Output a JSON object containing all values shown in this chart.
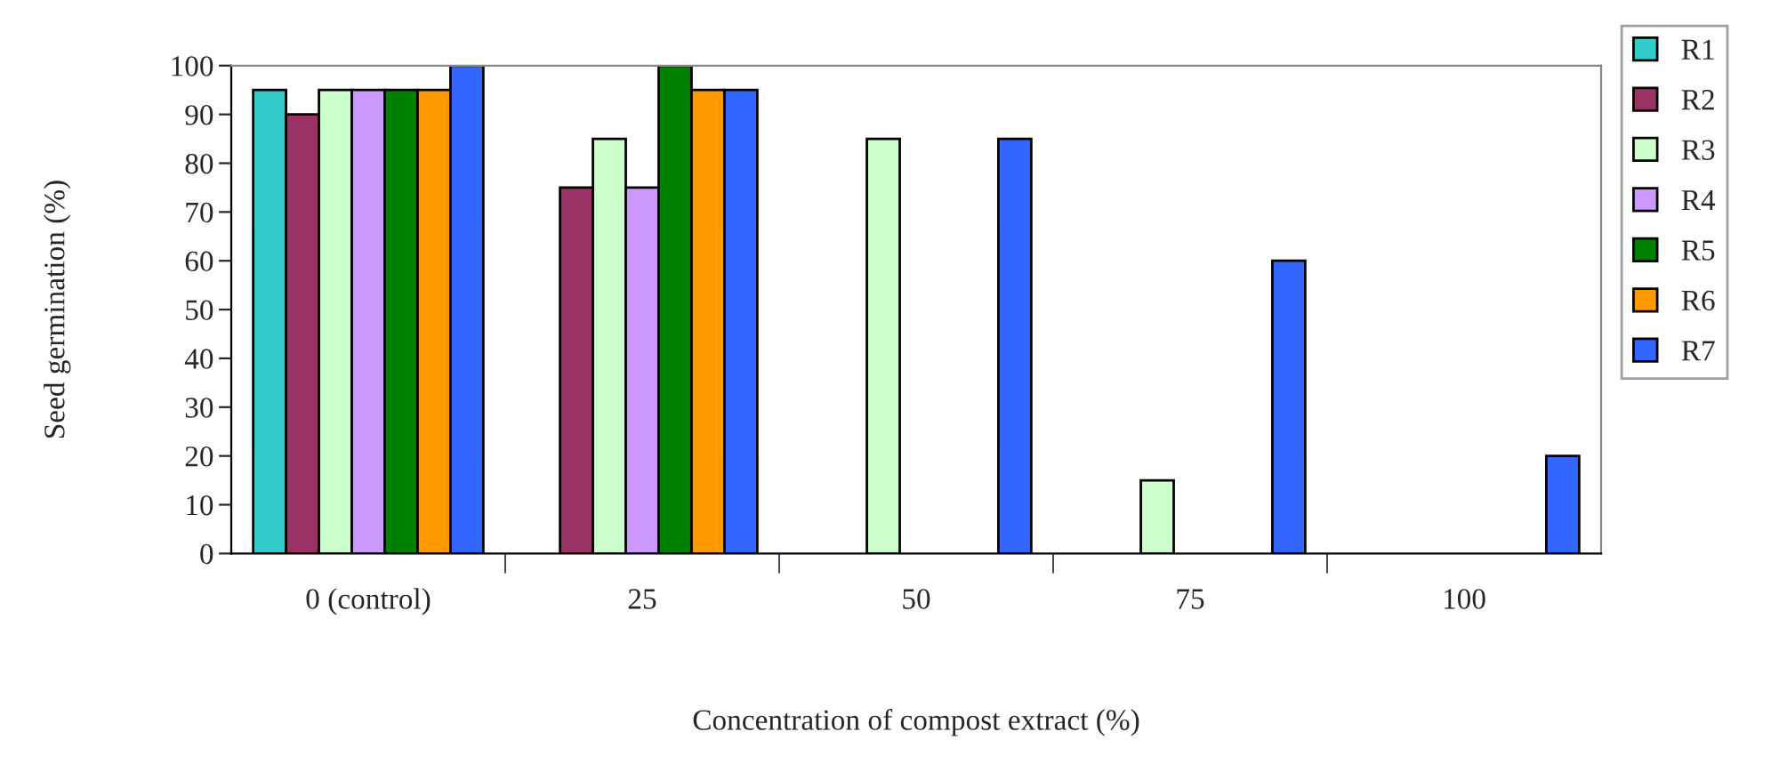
{
  "chart_data": {
    "type": "bar",
    "xlabel": "Concentration of compost extract (%)",
    "ylabel": "Seed germination (%)",
    "categories": [
      "0 (control)",
      "25",
      "50",
      "75",
      "100"
    ],
    "series": [
      {
        "name": "R1",
        "color": "#33cccc",
        "values": [
          95,
          null,
          null,
          null,
          null
        ]
      },
      {
        "name": "R2",
        "color": "#993366",
        "values": [
          90,
          75,
          null,
          null,
          null
        ]
      },
      {
        "name": "R3",
        "color": "#ccffcc",
        "values": [
          95,
          85,
          85,
          15,
          null
        ]
      },
      {
        "name": "R4",
        "color": "#cc99ff",
        "values": [
          95,
          75,
          null,
          null,
          null
        ]
      },
      {
        "name": "R5",
        "color": "#008000",
        "values": [
          95,
          100,
          null,
          null,
          null
        ]
      },
      {
        "name": "R6",
        "color": "#ff9900",
        "values": [
          95,
          95,
          null,
          null,
          null
        ]
      },
      {
        "name": "R7",
        "color": "#3366ff",
        "values": [
          100,
          95,
          85,
          60,
          20
        ]
      }
    ],
    "ylim": [
      0,
      100
    ],
    "yticks": [
      0,
      10,
      20,
      30,
      40,
      50,
      60,
      70,
      80,
      90,
      100
    ],
    "grid": false,
    "legend": "right"
  }
}
